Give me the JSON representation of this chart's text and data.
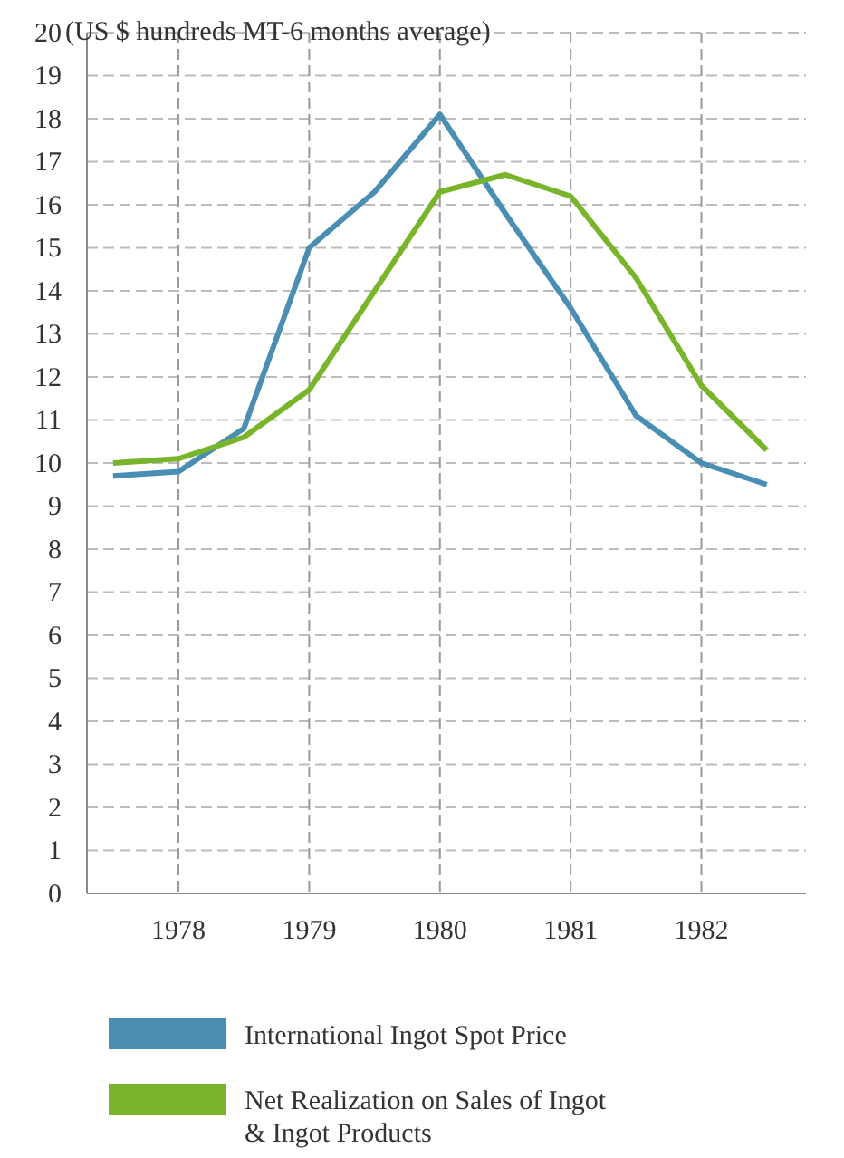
{
  "chart_data": {
    "type": "line",
    "ylabel": "(US $ hundreds MT-6 months average)",
    "x": [
      1977.5,
      1978,
      1978.5,
      1979,
      1979.5,
      1980,
      1980.5,
      1981,
      1981.5,
      1982,
      1982.5
    ],
    "xlim": [
      1977.3,
      1982.8
    ],
    "xticks": [
      1978,
      1979,
      1980,
      1981,
      1982
    ],
    "ylim": [
      0,
      20
    ],
    "yticks": [
      0,
      1,
      2,
      3,
      4,
      5,
      6,
      7,
      8,
      9,
      10,
      11,
      12,
      13,
      14,
      15,
      16,
      17,
      18,
      19,
      20
    ],
    "grid": true,
    "legend": "bottom",
    "marker": "none",
    "line_style": "solid",
    "series": [
      {
        "name": "International Ingot Spot Price",
        "color": "#4a8fb3",
        "values": [
          9.7,
          9.8,
          10.8,
          15,
          16.3,
          18.1,
          15.8,
          13.6,
          11.1,
          10,
          9.5
        ]
      },
      {
        "name": "Net Realization on Sales of Ingot & Ingot Products",
        "color": "#79b52a",
        "values": [
          10,
          10.1,
          10.6,
          11.7,
          14,
          16.3,
          16.7,
          16.2,
          14.3,
          11.8,
          10.3
        ]
      }
    ]
  }
}
